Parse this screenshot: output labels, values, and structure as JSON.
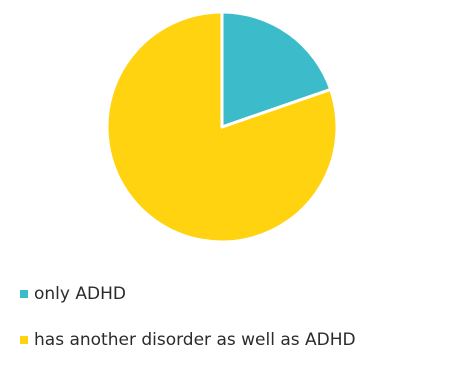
{
  "chart_data": {
    "type": "pie",
    "title": "",
    "series": [
      {
        "name": "only ADHD",
        "value": 19.7,
        "color": "#3CBCCB"
      },
      {
        "name": "has another disorder as well as ADHD",
        "value": 80.3,
        "color": "#FFD310"
      }
    ],
    "legend_position": "bottom-left"
  }
}
